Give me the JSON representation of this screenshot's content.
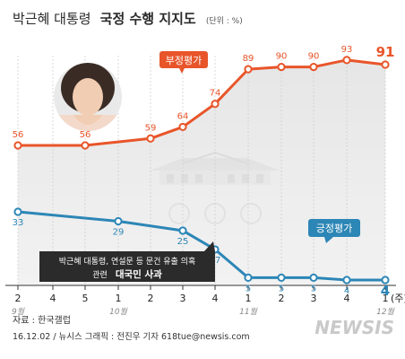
{
  "title": {
    "part1": "박근혜 대통령",
    "part2": "국정 수행 지지도",
    "unit": "(단위 : %)"
  },
  "chart_data": {
    "type": "line",
    "title": "박근혜 대통령 국정 수행 지지도",
    "unit": "(단위 : %)",
    "x_ticks": [
      "2",
      "4",
      "5",
      "1",
      "2",
      "3",
      "4",
      "1",
      "2",
      "3",
      "4",
      "1"
    ],
    "x_unit": "(주)",
    "months": [
      "9월",
      "10월",
      "11월",
      "12월"
    ],
    "ylim": [
      0,
      100
    ],
    "series": [
      {
        "name": "부정평가",
        "color": "#e8552a",
        "values": [
          56,
          null,
          56,
          null,
          59,
          64,
          74,
          89,
          90,
          90,
          93,
          91
        ]
      },
      {
        "name": "긍정평가",
        "color": "#2c86b6",
        "values": [
          33,
          null,
          null,
          29,
          null,
          25,
          17,
          5,
          5,
          5,
          4,
          4
        ]
      }
    ],
    "annotation": {
      "line1": "박근혜 대통령, 연설문 등 문건 유출 의혹",
      "line2_a": "관련",
      "line2_b": "대국민 사과"
    }
  },
  "source": "자료 : 한국갤럽",
  "credit": "16.12.02 / 뉴시스 그래픽 : 전진우 기자 618tue@newsis.com",
  "watermark": "NEWSIS",
  "colors": {
    "negative": "#e8552a",
    "positive": "#2c86b6",
    "shade": "#ececec",
    "note_bg": "#2b2b2b"
  }
}
